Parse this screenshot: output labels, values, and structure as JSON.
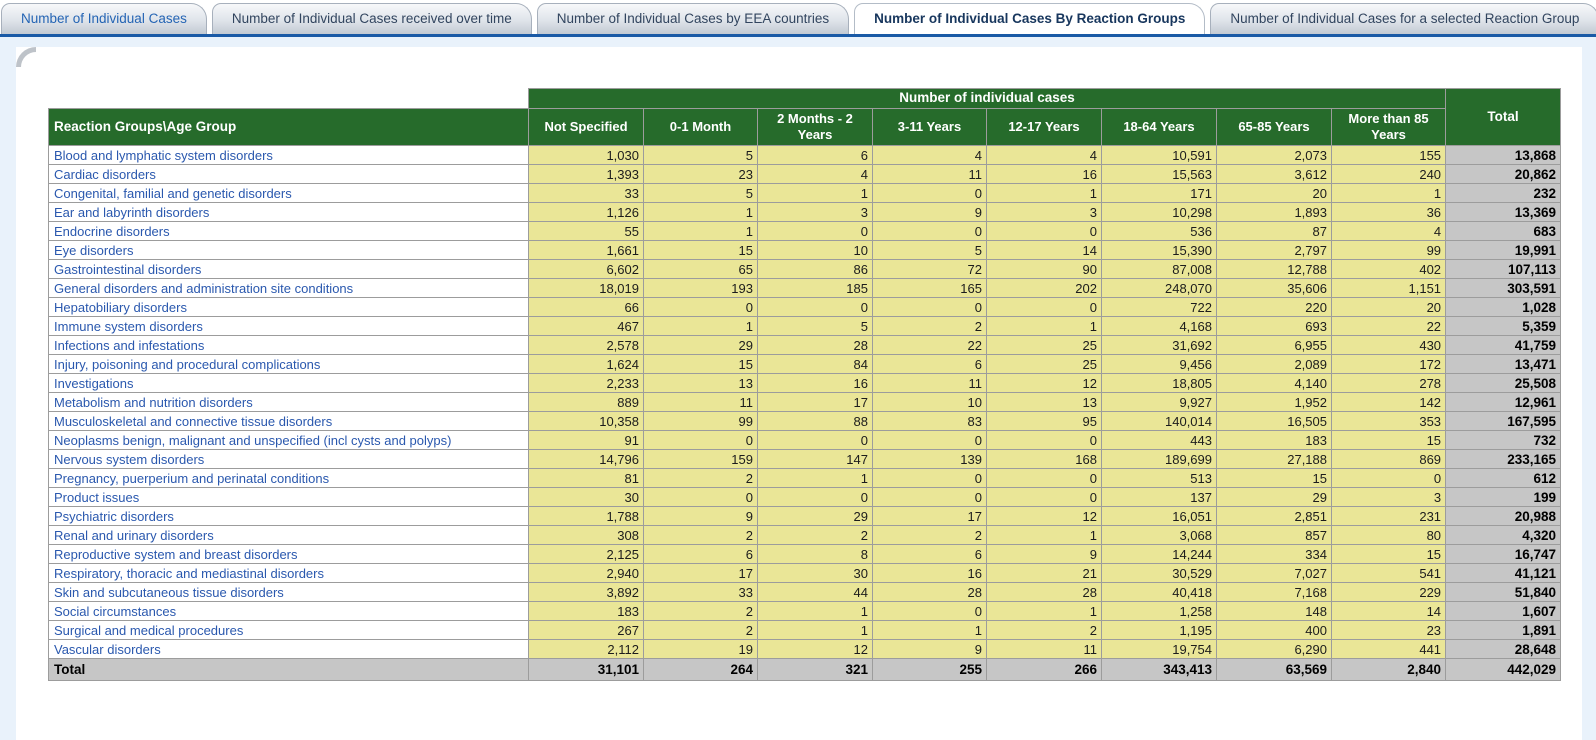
{
  "tabs": [
    {
      "label": "Number of Individual Cases",
      "active": false
    },
    {
      "label": "Number of Individual Cases received over time",
      "active": false
    },
    {
      "label": "Number of Individual Cases by EEA countries",
      "active": false
    },
    {
      "label": "Number of Individual Cases By Reaction Groups",
      "active": true
    },
    {
      "label": "Number of Individual Cases for a selected Reaction Group",
      "active": false
    }
  ],
  "table": {
    "group_header": "Number of individual cases",
    "corner_header": "Reaction Groups\\Age Group",
    "age_columns": [
      "Not Specified",
      "0-1 Month",
      "2 Months - 2 Years",
      "3-11 Years",
      "12-17 Years",
      "18-64 Years",
      "65-85 Years",
      "More than 85 Years"
    ],
    "total_header": "Total",
    "rows": [
      {
        "label": "Blood and lymphatic system disorders",
        "values": [
          "1,030",
          "5",
          "6",
          "4",
          "4",
          "10,591",
          "2,073",
          "155",
          "13,868"
        ]
      },
      {
        "label": "Cardiac disorders",
        "values": [
          "1,393",
          "23",
          "4",
          "11",
          "16",
          "15,563",
          "3,612",
          "240",
          "20,862"
        ]
      },
      {
        "label": "Congenital, familial and genetic disorders",
        "values": [
          "33",
          "5",
          "1",
          "0",
          "1",
          "171",
          "20",
          "1",
          "232"
        ]
      },
      {
        "label": "Ear and labyrinth disorders",
        "values": [
          "1,126",
          "1",
          "3",
          "9",
          "3",
          "10,298",
          "1,893",
          "36",
          "13,369"
        ]
      },
      {
        "label": "Endocrine disorders",
        "values": [
          "55",
          "1",
          "0",
          "0",
          "0",
          "536",
          "87",
          "4",
          "683"
        ]
      },
      {
        "label": "Eye disorders",
        "values": [
          "1,661",
          "15",
          "10",
          "5",
          "14",
          "15,390",
          "2,797",
          "99",
          "19,991"
        ]
      },
      {
        "label": "Gastrointestinal disorders",
        "values": [
          "6,602",
          "65",
          "86",
          "72",
          "90",
          "87,008",
          "12,788",
          "402",
          "107,113"
        ]
      },
      {
        "label": "General disorders and administration site conditions",
        "values": [
          "18,019",
          "193",
          "185",
          "165",
          "202",
          "248,070",
          "35,606",
          "1,151",
          "303,591"
        ]
      },
      {
        "label": "Hepatobiliary disorders",
        "values": [
          "66",
          "0",
          "0",
          "0",
          "0",
          "722",
          "220",
          "20",
          "1,028"
        ]
      },
      {
        "label": "Immune system disorders",
        "values": [
          "467",
          "1",
          "5",
          "2",
          "1",
          "4,168",
          "693",
          "22",
          "5,359"
        ]
      },
      {
        "label": "Infections and infestations",
        "values": [
          "2,578",
          "29",
          "28",
          "22",
          "25",
          "31,692",
          "6,955",
          "430",
          "41,759"
        ]
      },
      {
        "label": "Injury, poisoning and procedural complications",
        "values": [
          "1,624",
          "15",
          "84",
          "6",
          "25",
          "9,456",
          "2,089",
          "172",
          "13,471"
        ]
      },
      {
        "label": "Investigations",
        "values": [
          "2,233",
          "13",
          "16",
          "11",
          "12",
          "18,805",
          "4,140",
          "278",
          "25,508"
        ]
      },
      {
        "label": "Metabolism and nutrition disorders",
        "values": [
          "889",
          "11",
          "17",
          "10",
          "13",
          "9,927",
          "1,952",
          "142",
          "12,961"
        ]
      },
      {
        "label": "Musculoskeletal and connective tissue disorders",
        "values": [
          "10,358",
          "99",
          "88",
          "83",
          "95",
          "140,014",
          "16,505",
          "353",
          "167,595"
        ]
      },
      {
        "label": "Neoplasms benign, malignant and unspecified (incl cysts and polyps)",
        "values": [
          "91",
          "0",
          "0",
          "0",
          "0",
          "443",
          "183",
          "15",
          "732"
        ]
      },
      {
        "label": "Nervous system disorders",
        "values": [
          "14,796",
          "159",
          "147",
          "139",
          "168",
          "189,699",
          "27,188",
          "869",
          "233,165"
        ]
      },
      {
        "label": "Pregnancy, puerperium and perinatal conditions",
        "values": [
          "81",
          "2",
          "1",
          "0",
          "0",
          "513",
          "15",
          "0",
          "612"
        ]
      },
      {
        "label": "Product issues",
        "values": [
          "30",
          "0",
          "0",
          "0",
          "0",
          "137",
          "29",
          "3",
          "199"
        ]
      },
      {
        "label": "Psychiatric disorders",
        "values": [
          "1,788",
          "9",
          "29",
          "17",
          "12",
          "16,051",
          "2,851",
          "231",
          "20,988"
        ]
      },
      {
        "label": "Renal and urinary disorders",
        "values": [
          "308",
          "2",
          "2",
          "2",
          "1",
          "3,068",
          "857",
          "80",
          "4,320"
        ]
      },
      {
        "label": "Reproductive system and breast disorders",
        "values": [
          "2,125",
          "6",
          "8",
          "6",
          "9",
          "14,244",
          "334",
          "15",
          "16,747"
        ]
      },
      {
        "label": "Respiratory, thoracic and mediastinal disorders",
        "values": [
          "2,940",
          "17",
          "30",
          "16",
          "21",
          "30,529",
          "7,027",
          "541",
          "41,121"
        ]
      },
      {
        "label": "Skin and subcutaneous tissue disorders",
        "values": [
          "3,892",
          "33",
          "44",
          "28",
          "28",
          "40,418",
          "7,168",
          "229",
          "51,840"
        ]
      },
      {
        "label": "Social circumstances",
        "values": [
          "183",
          "2",
          "1",
          "0",
          "1",
          "1,258",
          "148",
          "14",
          "1,607"
        ]
      },
      {
        "label": "Surgical and medical procedures",
        "values": [
          "267",
          "2",
          "1",
          "1",
          "2",
          "1,195",
          "400",
          "23",
          "1,891"
        ]
      },
      {
        "label": "Vascular disorders",
        "values": [
          "2,112",
          "19",
          "12",
          "9",
          "11",
          "19,754",
          "6,290",
          "441",
          "28,648"
        ]
      }
    ],
    "total_row": {
      "label": "Total",
      "values": [
        "31,101",
        "264",
        "321",
        "255",
        "266",
        "343,413",
        "63,569",
        "2,840",
        "442,029"
      ]
    }
  },
  "colors": {
    "accent_line": "#1A5AA6",
    "header_green": "#266B2B",
    "cell_khaki": "#EAE697",
    "total_gray": "#C6C6C6",
    "link_blue": "#2A58AE",
    "page_bg": "#E9F2FB"
  }
}
